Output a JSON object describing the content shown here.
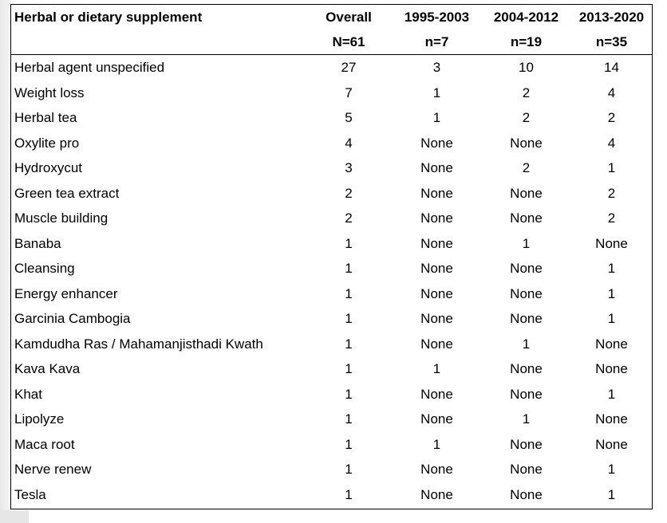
{
  "table": {
    "headers": {
      "label": "Herbal or dietary supplement",
      "periods": [
        "Overall",
        "1995-2003",
        "2004-2012",
        "2013-2020"
      ],
      "counts": [
        "N=61",
        "n=7",
        "n=19",
        "n=35"
      ]
    },
    "rows": [
      {
        "name": "Herbal agent unspecified",
        "values": [
          "27",
          "3",
          "10",
          "14"
        ]
      },
      {
        "name": "Weight loss",
        "values": [
          "7",
          "1",
          "2",
          "4"
        ]
      },
      {
        "name": "Herbal tea",
        "values": [
          "5",
          "1",
          "2",
          "2"
        ]
      },
      {
        "name": "Oxylite pro",
        "values": [
          "4",
          "None",
          "None",
          "4"
        ]
      },
      {
        "name": "Hydroxycut",
        "values": [
          "3",
          "None",
          "2",
          "1"
        ]
      },
      {
        "name": "Green tea extract",
        "values": [
          "2",
          "None",
          "None",
          "2"
        ]
      },
      {
        "name": "Muscle building",
        "values": [
          "2",
          "None",
          "None",
          "2"
        ]
      },
      {
        "name": "Banaba",
        "values": [
          "1",
          "None",
          "1",
          "None"
        ]
      },
      {
        "name": "Cleansing",
        "values": [
          "1",
          "None",
          "None",
          "1"
        ]
      },
      {
        "name": "Energy enhancer",
        "values": [
          "1",
          "None",
          "None",
          "1"
        ]
      },
      {
        "name": "Garcinia Cambogia",
        "values": [
          "1",
          "None",
          "None",
          "1"
        ]
      },
      {
        "name": "Kamdudha Ras / Mahamanjisthadi Kwath",
        "values": [
          "1",
          "None",
          "1",
          "None"
        ]
      },
      {
        "name": "Kava Kava",
        "values": [
          "1",
          "1",
          "None",
          "None"
        ]
      },
      {
        "name": "Khat",
        "values": [
          "1",
          "None",
          "None",
          "1"
        ]
      },
      {
        "name": "Lipolyze",
        "values": [
          "1",
          "None",
          "1",
          "None"
        ]
      },
      {
        "name": "Maca root",
        "values": [
          "1",
          "1",
          "None",
          "None"
        ]
      },
      {
        "name": "Nerve renew",
        "values": [
          "1",
          "None",
          "None",
          "1"
        ]
      },
      {
        "name": "Tesla",
        "values": [
          "1",
          "None",
          "None",
          "1"
        ]
      }
    ]
  }
}
